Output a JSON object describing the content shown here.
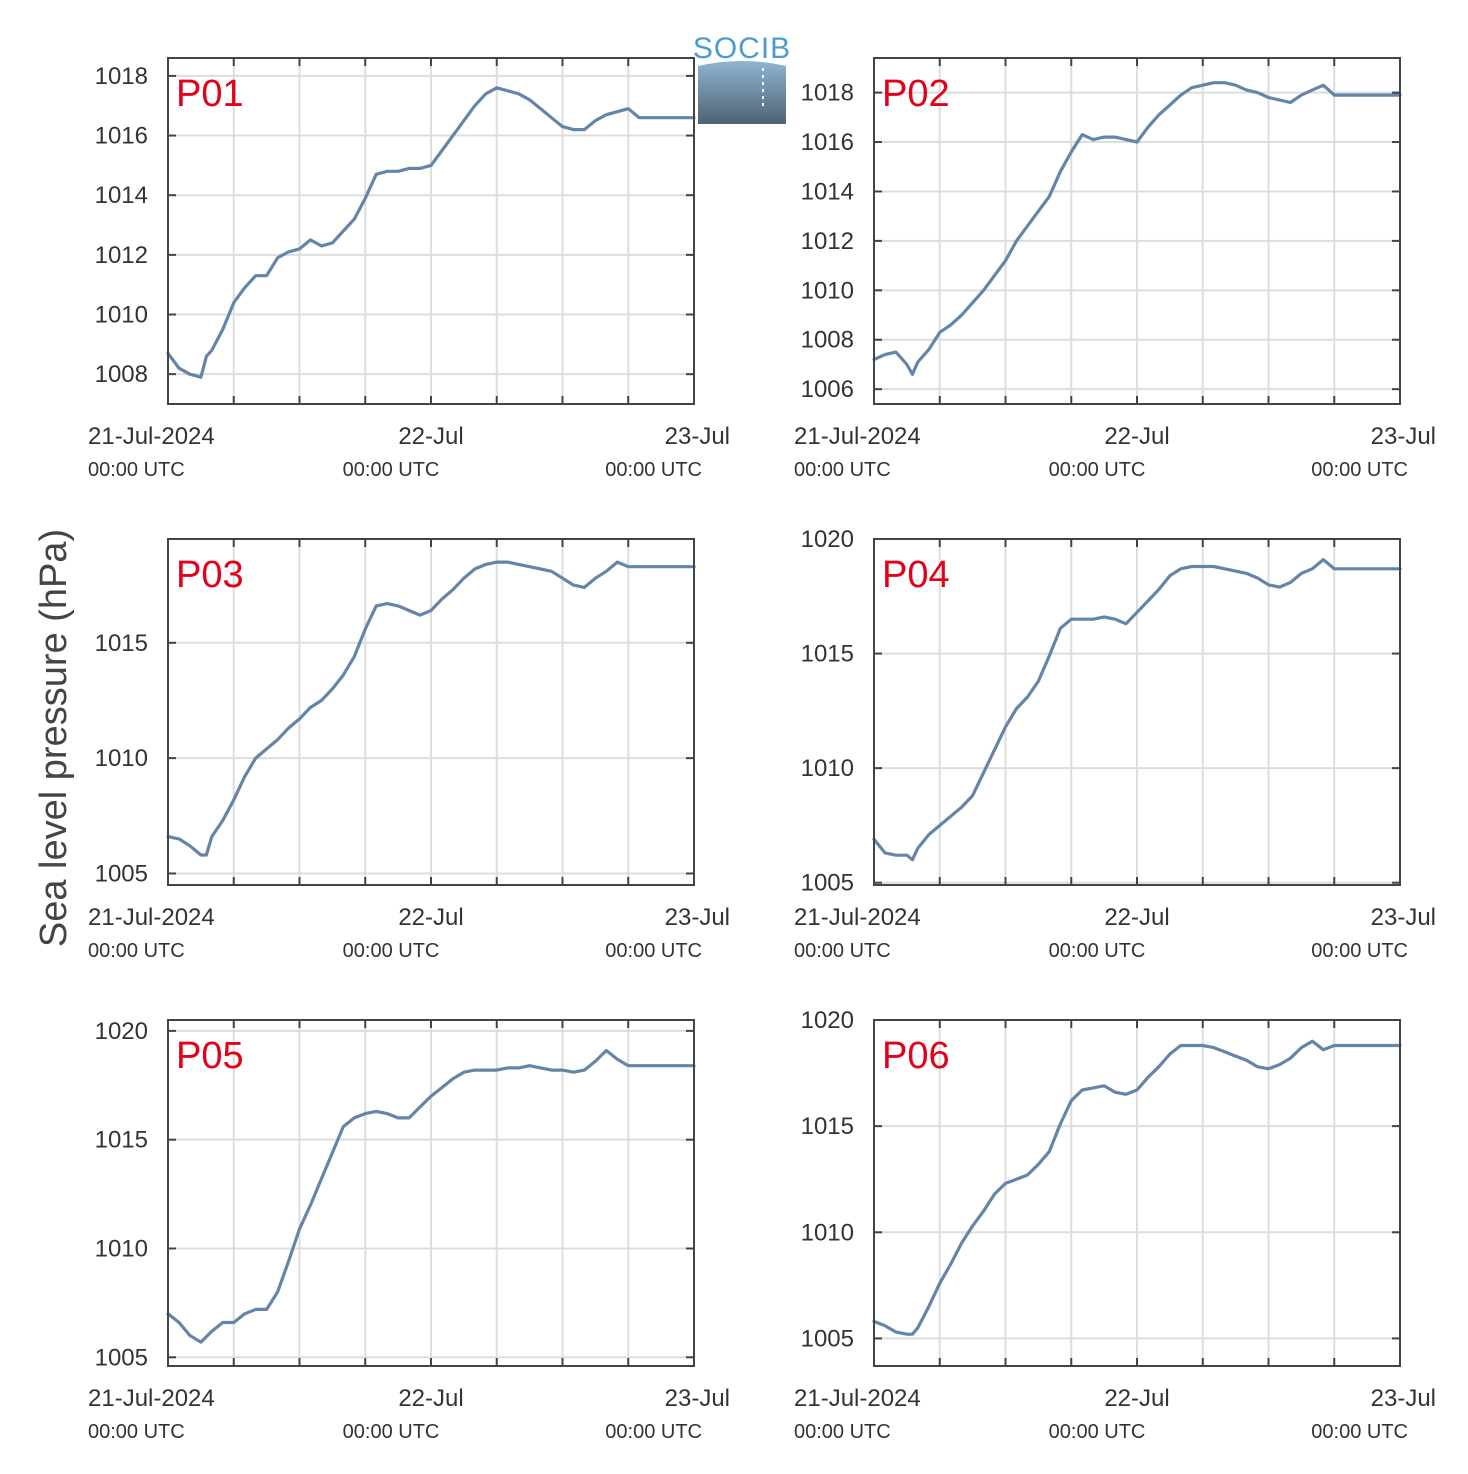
{
  "colors": {
    "series": "#6585a8",
    "panel_label": "#e3001b",
    "grid": "#dddddd",
    "axes": "#444444",
    "logo_text": "#4a9cd0"
  },
  "logo": {
    "text": "SOCIB"
  },
  "figure": {
    "ylabel": "Sea level pressure (hPa)"
  },
  "x_axis": {
    "ticks": [
      {
        "date": "21-Jul-2024",
        "time": "00:00 UTC",
        "x": 0
      },
      {
        "date": "22-Jul",
        "time": "00:00 UTC",
        "x": 24
      },
      {
        "date": "23-Jul",
        "time": "00:00 UTC",
        "x": 48
      }
    ]
  },
  "chart_data": [
    {
      "type": "line",
      "label": "P01",
      "xlim": [
        0,
        48
      ],
      "ylim": [
        1007,
        1018.6
      ],
      "yticks": [
        1008,
        1010,
        1012,
        1014,
        1016,
        1018
      ],
      "x": [
        0,
        1,
        2,
        3,
        3.5,
        4,
        5,
        6,
        7,
        8,
        9,
        10,
        11,
        12,
        13,
        14,
        15,
        16,
        17,
        18,
        19,
        20,
        21,
        22,
        23,
        24,
        25,
        26,
        27,
        28,
        29,
        30,
        31,
        32,
        33,
        34,
        35,
        36,
        37,
        38,
        39,
        40,
        41,
        42,
        43,
        44,
        45,
        46,
        47,
        48
      ],
      "y": [
        1008.7,
        1008.2,
        1008.0,
        1007.9,
        1008.6,
        1008.8,
        1009.5,
        1010.4,
        1010.9,
        1011.3,
        1011.3,
        1011.9,
        1012.1,
        1012.2,
        1012.5,
        1012.3,
        1012.4,
        1012.8,
        1013.2,
        1013.9,
        1014.7,
        1014.8,
        1014.8,
        1014.9,
        1014.9,
        1015.0,
        1015.5,
        1016.0,
        1016.5,
        1017.0,
        1017.4,
        1017.6,
        1017.5,
        1017.4,
        1017.2,
        1016.9,
        1016.6,
        1016.3,
        1016.2,
        1016.2,
        1016.5,
        1016.7,
        1016.8,
        1016.9,
        1016.6,
        1016.6,
        1016.6,
        1016.6,
        1016.6,
        1016.6
      ]
    },
    {
      "type": "line",
      "label": "P02",
      "xlim": [
        0,
        48
      ],
      "ylim": [
        1005.4,
        1019.4
      ],
      "yticks": [
        1006,
        1008,
        1010,
        1012,
        1014,
        1016,
        1018
      ],
      "x": [
        0,
        1,
        2,
        3,
        3.5,
        4,
        5,
        6,
        7,
        8,
        9,
        10,
        11,
        12,
        13,
        14,
        15,
        16,
        17,
        18,
        19,
        20,
        21,
        22,
        23,
        24,
        25,
        26,
        27,
        28,
        29,
        30,
        31,
        32,
        33,
        34,
        35,
        36,
        37,
        38,
        39,
        40,
        41,
        42,
        43,
        44,
        45,
        46,
        47,
        48
      ],
      "y": [
        1007.2,
        1007.4,
        1007.5,
        1007.0,
        1006.6,
        1007.1,
        1007.6,
        1008.3,
        1008.6,
        1009.0,
        1009.5,
        1010.0,
        1010.6,
        1011.2,
        1012.0,
        1012.6,
        1013.2,
        1013.8,
        1014.8,
        1015.6,
        1016.3,
        1016.1,
        1016.2,
        1016.2,
        1016.1,
        1016.0,
        1016.6,
        1017.1,
        1017.5,
        1017.9,
        1018.2,
        1018.3,
        1018.4,
        1018.4,
        1018.3,
        1018.1,
        1018.0,
        1017.8,
        1017.7,
        1017.6,
        1017.9,
        1018.1,
        1018.3,
        1017.9,
        1017.9,
        1017.9,
        1017.9,
        1017.9,
        1017.9,
        1017.9
      ]
    },
    {
      "type": "line",
      "label": "P03",
      "xlim": [
        0,
        48
      ],
      "ylim": [
        1004.5,
        1019.5
      ],
      "yticks": [
        1005,
        1010,
        1015
      ],
      "x": [
        0,
        1,
        2,
        3,
        3.5,
        4,
        5,
        6,
        7,
        8,
        9,
        10,
        11,
        12,
        13,
        14,
        15,
        16,
        17,
        18,
        19,
        20,
        21,
        22,
        23,
        24,
        25,
        26,
        27,
        28,
        29,
        30,
        31,
        32,
        33,
        34,
        35,
        36,
        37,
        38,
        39,
        40,
        41,
        42,
        43,
        44,
        45,
        46,
        47,
        48
      ],
      "y": [
        1006.6,
        1006.5,
        1006.2,
        1005.8,
        1005.8,
        1006.6,
        1007.3,
        1008.2,
        1009.2,
        1010.0,
        1010.4,
        1010.8,
        1011.3,
        1011.7,
        1012.2,
        1012.5,
        1013.0,
        1013.6,
        1014.4,
        1015.6,
        1016.6,
        1016.7,
        1016.6,
        1016.4,
        1016.2,
        1016.4,
        1016.9,
        1017.3,
        1017.8,
        1018.2,
        1018.4,
        1018.5,
        1018.5,
        1018.4,
        1018.3,
        1018.2,
        1018.1,
        1017.8,
        1017.5,
        1017.4,
        1017.8,
        1018.1,
        1018.5,
        1018.3,
        1018.3,
        1018.3,
        1018.3,
        1018.3,
        1018.3,
        1018.3
      ]
    },
    {
      "type": "line",
      "label": "P04",
      "xlim": [
        0,
        48
      ],
      "ylim": [
        1004.9,
        1020.0
      ],
      "yticks": [
        1005,
        1010,
        1015,
        1020
      ],
      "x": [
        0,
        1,
        2,
        3,
        3.5,
        4,
        5,
        6,
        7,
        8,
        9,
        10,
        11,
        12,
        13,
        14,
        15,
        16,
        17,
        18,
        19,
        20,
        21,
        22,
        23,
        24,
        25,
        26,
        27,
        28,
        29,
        30,
        31,
        32,
        33,
        34,
        35,
        36,
        37,
        38,
        39,
        40,
        41,
        42,
        43,
        44,
        45,
        46,
        47,
        48
      ],
      "y": [
        1006.9,
        1006.3,
        1006.2,
        1006.2,
        1006.0,
        1006.5,
        1007.1,
        1007.5,
        1007.9,
        1008.3,
        1008.8,
        1009.8,
        1010.8,
        1011.8,
        1012.6,
        1013.1,
        1013.8,
        1014.9,
        1016.1,
        1016.5,
        1016.5,
        1016.5,
        1016.6,
        1016.5,
        1016.3,
        1016.8,
        1017.3,
        1017.8,
        1018.4,
        1018.7,
        1018.8,
        1018.8,
        1018.8,
        1018.7,
        1018.6,
        1018.5,
        1018.3,
        1018.0,
        1017.9,
        1018.1,
        1018.5,
        1018.7,
        1019.1,
        1018.7,
        1018.7,
        1018.7,
        1018.7,
        1018.7,
        1018.7,
        1018.7
      ]
    },
    {
      "type": "line",
      "label": "P05",
      "xlim": [
        0,
        48
      ],
      "ylim": [
        1004.6,
        1020.5
      ],
      "yticks": [
        1005,
        1010,
        1015,
        1020
      ],
      "x": [
        0,
        1,
        2,
        3,
        4,
        5,
        6,
        7,
        8,
        9,
        10,
        11,
        12,
        13,
        14,
        15,
        16,
        17,
        18,
        19,
        20,
        21,
        22,
        23,
        24,
        25,
        26,
        27,
        28,
        29,
        30,
        31,
        32,
        33,
        34,
        35,
        36,
        37,
        38,
        39,
        40,
        41,
        42,
        43,
        44,
        45,
        46,
        47,
        48
      ],
      "y": [
        1007.0,
        1006.6,
        1006.0,
        1005.7,
        1006.2,
        1006.6,
        1006.6,
        1007.0,
        1007.2,
        1007.2,
        1008.0,
        1009.4,
        1010.9,
        1012.0,
        1013.2,
        1014.4,
        1015.6,
        1016.0,
        1016.2,
        1016.3,
        1016.2,
        1016.0,
        1016.0,
        1016.5,
        1017.0,
        1017.4,
        1017.8,
        1018.1,
        1018.2,
        1018.2,
        1018.2,
        1018.3,
        1018.3,
        1018.4,
        1018.3,
        1018.2,
        1018.2,
        1018.1,
        1018.2,
        1018.6,
        1019.1,
        1018.7,
        1018.4,
        1018.4,
        1018.4,
        1018.4,
        1018.4,
        1018.4,
        1018.4
      ]
    },
    {
      "type": "line",
      "label": "P06",
      "xlim": [
        0,
        48
      ],
      "ylim": [
        1003.7,
        1020.0
      ],
      "yticks": [
        1005,
        1010,
        1015,
        1020
      ],
      "x": [
        0,
        1,
        2,
        3,
        3.5,
        4,
        5,
        6,
        7,
        8,
        9,
        10,
        11,
        12,
        13,
        14,
        15,
        16,
        17,
        18,
        19,
        20,
        21,
        22,
        23,
        24,
        25,
        26,
        27,
        28,
        29,
        30,
        31,
        32,
        33,
        34,
        35,
        36,
        37,
        38,
        39,
        40,
        41,
        42,
        43,
        44,
        45,
        46,
        47,
        48
      ],
      "y": [
        1005.8,
        1005.6,
        1005.3,
        1005.2,
        1005.2,
        1005.5,
        1006.5,
        1007.6,
        1008.5,
        1009.5,
        1010.3,
        1011.0,
        1011.8,
        1012.3,
        1012.5,
        1012.7,
        1013.2,
        1013.8,
        1015.1,
        1016.2,
        1016.7,
        1016.8,
        1016.9,
        1016.6,
        1016.5,
        1016.7,
        1017.3,
        1017.8,
        1018.4,
        1018.8,
        1018.8,
        1018.8,
        1018.7,
        1018.5,
        1018.3,
        1018.1,
        1017.8,
        1017.7,
        1017.9,
        1018.2,
        1018.7,
        1019.0,
        1018.6,
        1018.8,
        1018.8,
        1018.8,
        1018.8,
        1018.8,
        1018.8,
        1018.8
      ]
    }
  ]
}
